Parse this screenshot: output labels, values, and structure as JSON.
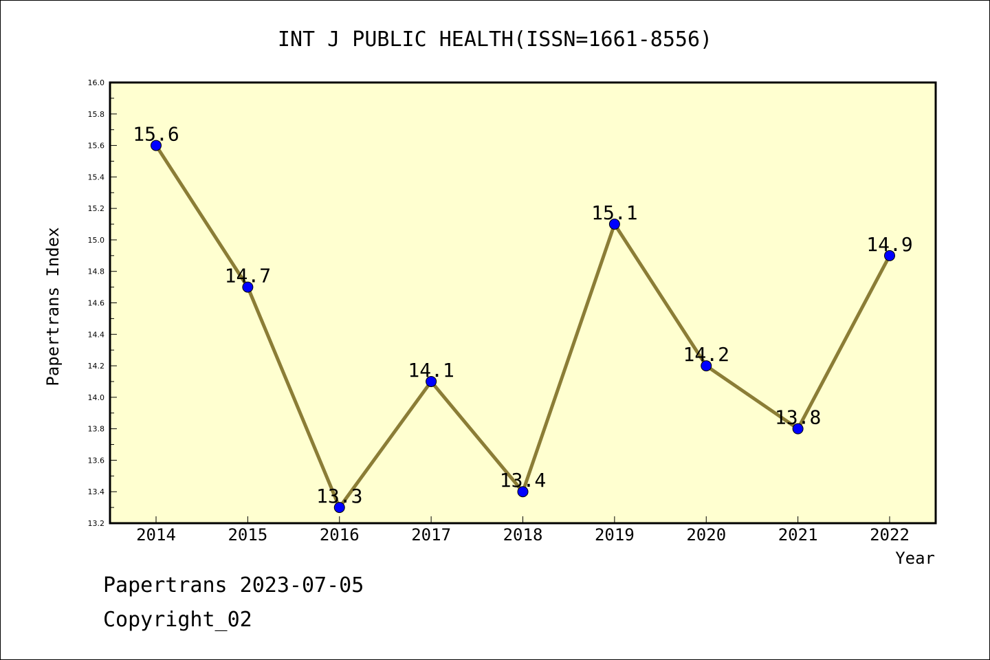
{
  "chart_data": {
    "type": "line",
    "title": "INT J PUBLIC HEALTH(ISSN=1661-8556)",
    "xlabel": "Year",
    "ylabel": "Papertrans Index",
    "categories": [
      "2014",
      "2015",
      "2016",
      "2017",
      "2018",
      "2019",
      "2020",
      "2021",
      "2022"
    ],
    "values": [
      15.6,
      14.7,
      13.3,
      14.1,
      13.4,
      15.1,
      14.2,
      13.8,
      14.9
    ],
    "data_labels": [
      "15.6",
      "14.7",
      "13.3",
      "14.1",
      "13.4",
      "15.1",
      "14.2",
      "13.8",
      "14.9"
    ],
    "ylim": [
      13.2,
      16.0
    ],
    "yticks": [
      "13.2",
      "13.4",
      "13.6",
      "13.8",
      "14.0",
      "14.2",
      "14.4",
      "14.6",
      "14.8",
      "15.0",
      "15.2",
      "15.4",
      "15.6",
      "15.8",
      "16.0"
    ],
    "grid": false,
    "legend": "none",
    "colors": {
      "plot_background": "#ffffd0",
      "line": "#8b7d36",
      "marker": "#0000ff",
      "marker_edge": "#000000",
      "axis": "#000000"
    }
  },
  "footer": {
    "line1": "Papertrans 2023-07-05",
    "line2": "Copyright_02"
  }
}
